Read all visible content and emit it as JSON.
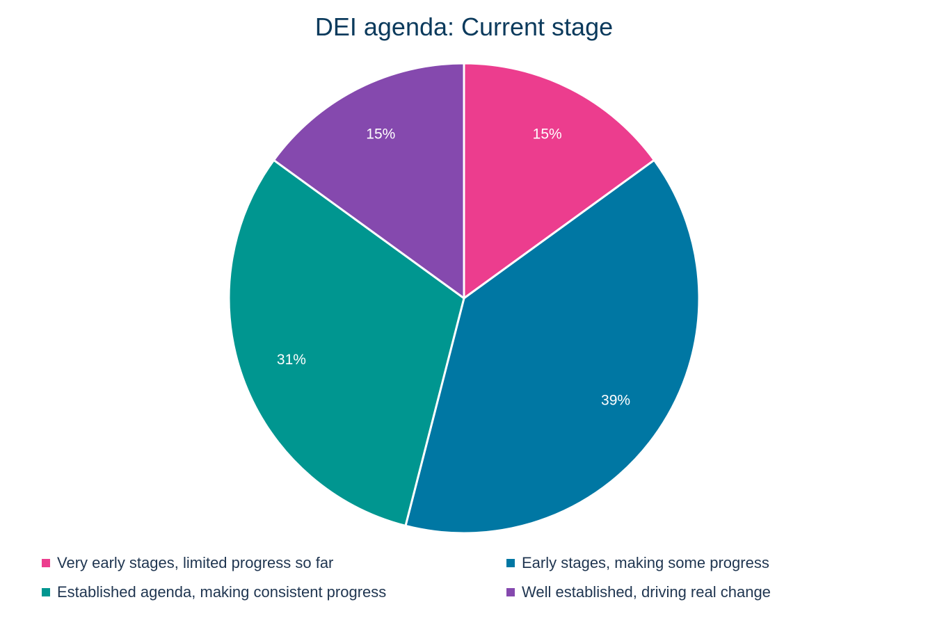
{
  "chart_data": {
    "type": "pie",
    "title": "DEI agenda: Current stage",
    "slices": [
      {
        "label": "Very early stages, limited progress so far",
        "value": 15,
        "display": "15%",
        "color": "#ec3d8e"
      },
      {
        "label": "Early stages, making some progress",
        "value": 39,
        "display": "39%",
        "color": "#0077a3"
      },
      {
        "label": "Established agenda, making consistent progress",
        "value": 31,
        "display": "31%",
        "color": "#009690"
      },
      {
        "label": "Well established, driving real change",
        "value": 15,
        "display": "15%",
        "color": "#8549ae"
      }
    ],
    "start_angle": "12 o'clock",
    "direction": "clockwise",
    "legend_position": "bottom"
  }
}
